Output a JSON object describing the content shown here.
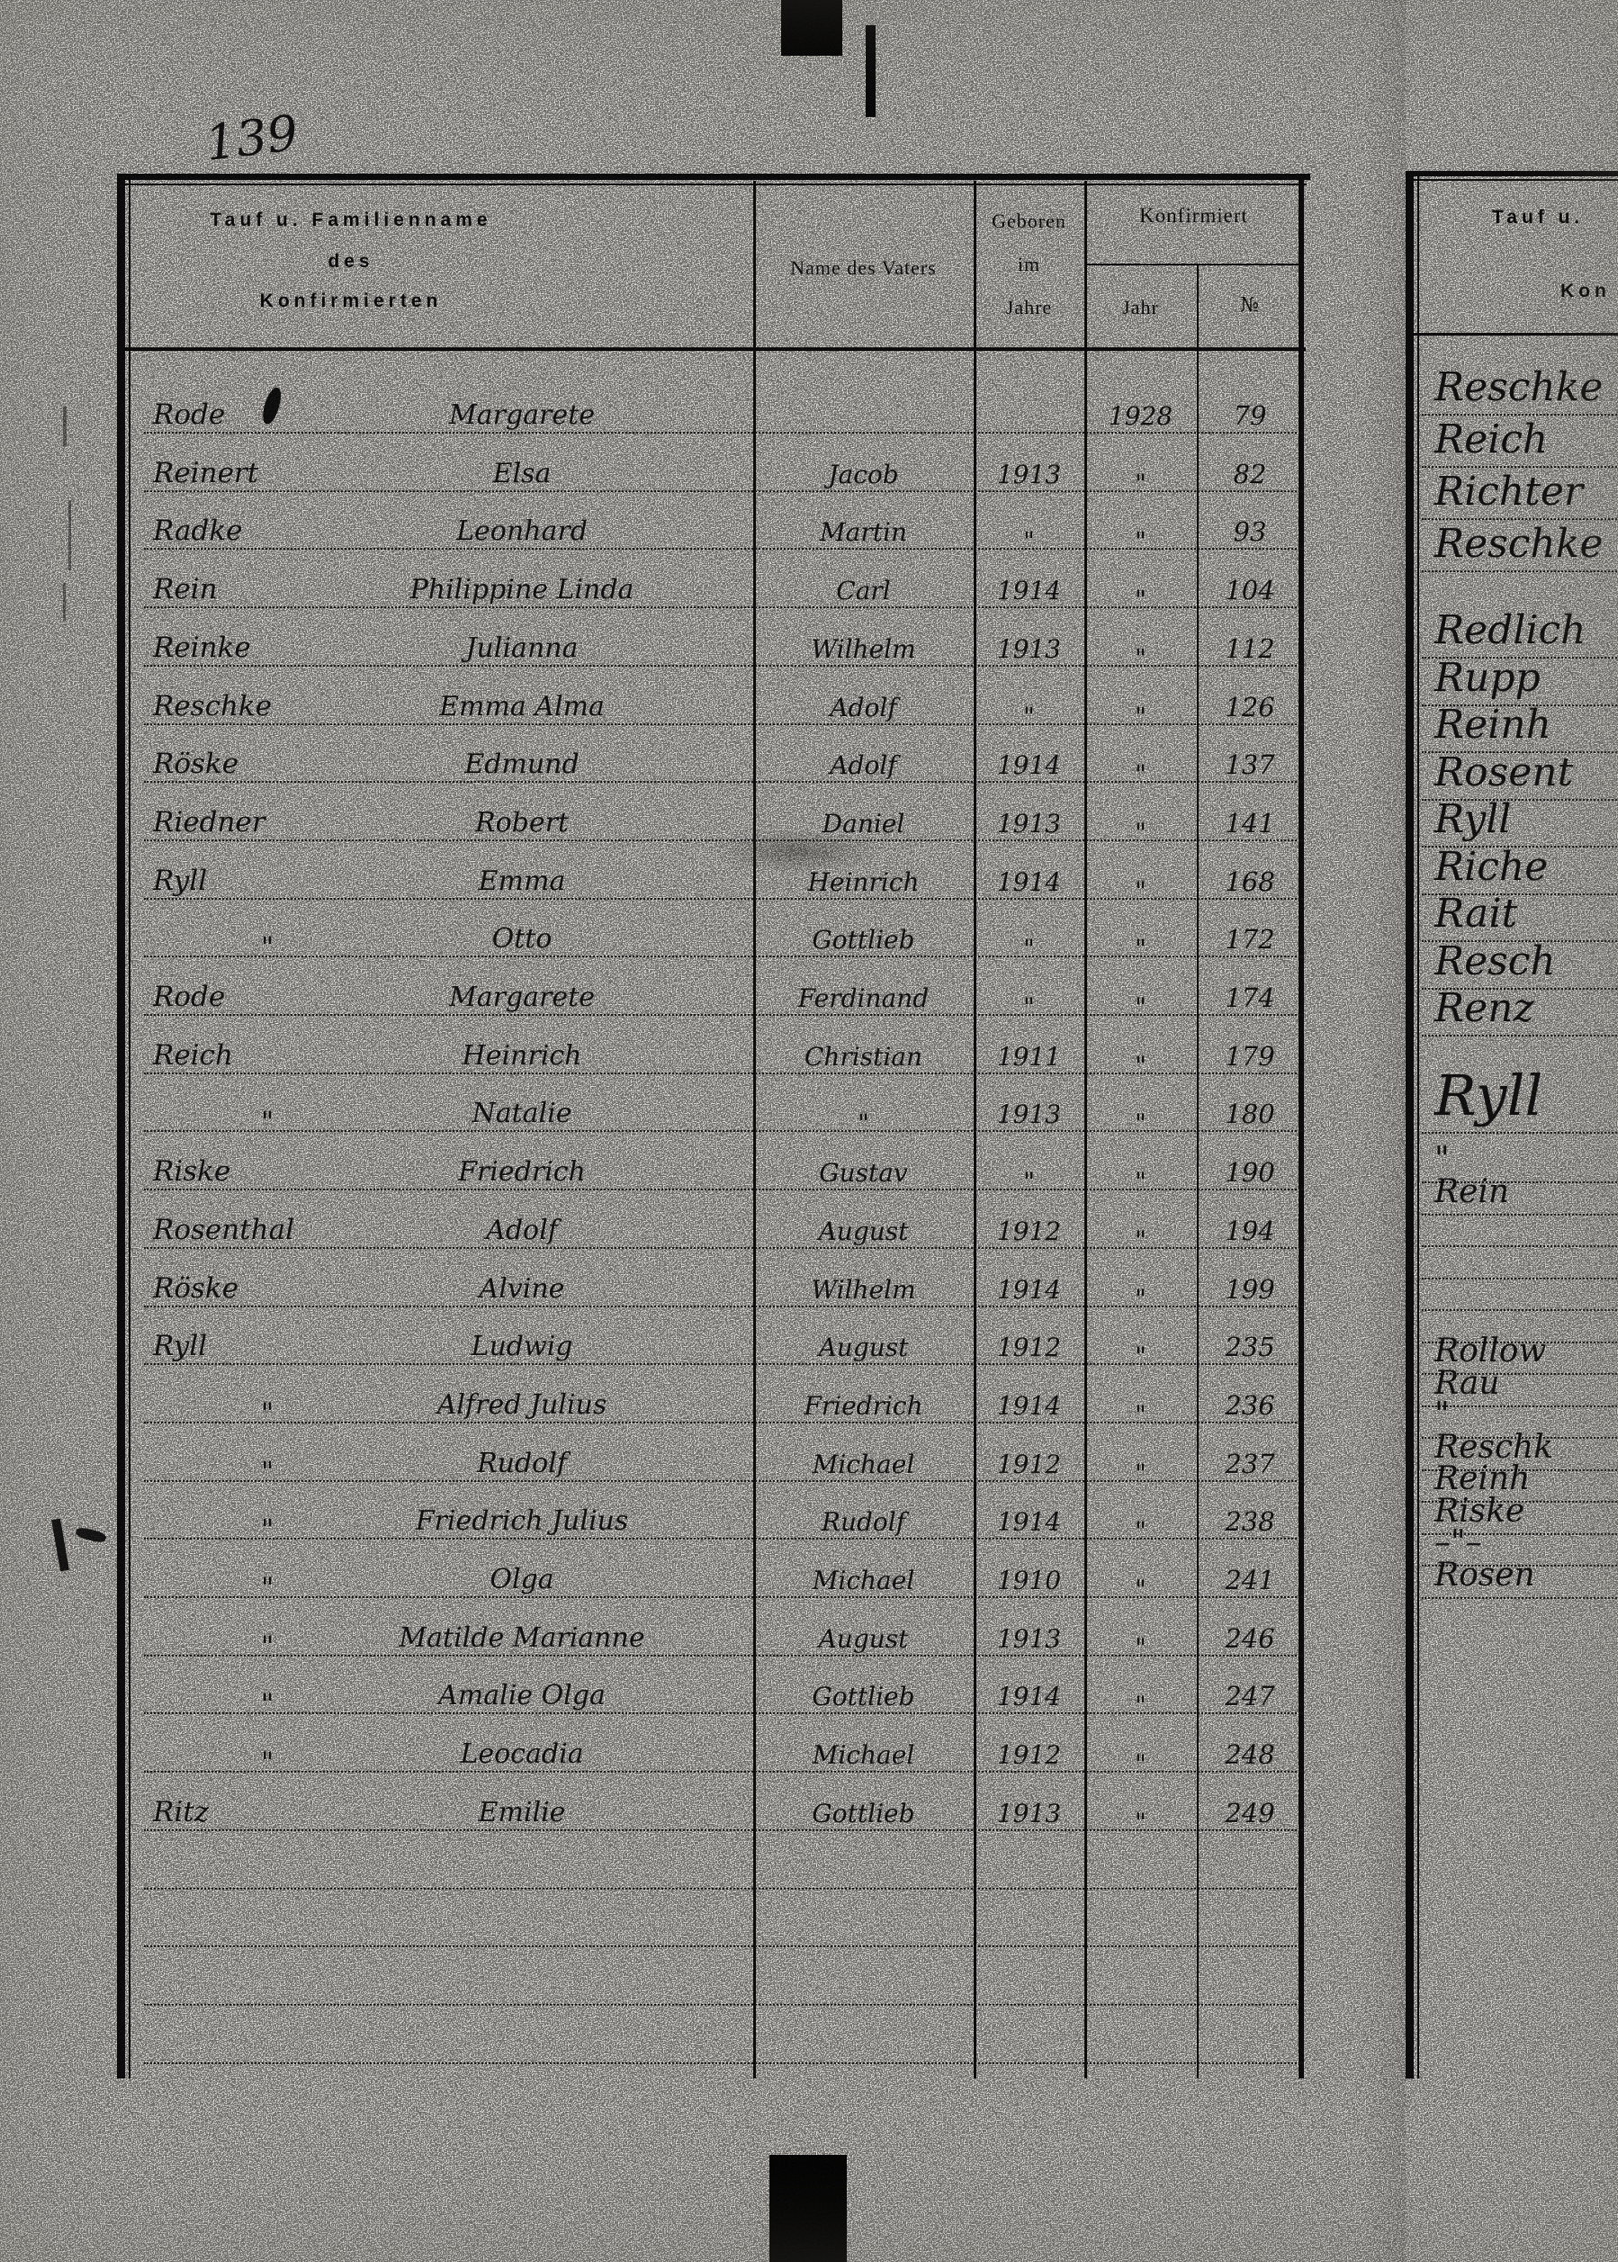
{
  "page_number": "139",
  "left_page": {
    "header": {
      "name_col_line1": "Tauf u. Familienname",
      "name_col_line2": "des",
      "name_col_line3": "Konfirmierten",
      "father_col": "Name des Vaters",
      "born_col_line1": "Geboren",
      "born_col_line2": "im",
      "born_col_line3": "Jahre",
      "confirmed_col": "Konfirmiert",
      "confirmed_year_col": "Jahr",
      "confirmed_no_col": "№"
    },
    "rows": [
      {
        "surname": "Rode",
        "given": "Margarete",
        "father": "",
        "born": "",
        "conf_year": "1928",
        "conf_no": "79"
      },
      {
        "surname": "Reinert",
        "given": "Elsa",
        "father": "Jacob",
        "born": "1913",
        "conf_year": "\"",
        "conf_no": "82"
      },
      {
        "surname": "Radke",
        "given": "Leonhard",
        "father": "Martin",
        "born": "\"",
        "conf_year": "\"",
        "conf_no": "93"
      },
      {
        "surname": "Rein",
        "given": "Philippine Linda",
        "father": "Carl",
        "born": "1914",
        "conf_year": "\"",
        "conf_no": "104"
      },
      {
        "surname": "Reinke",
        "given": "Julianna",
        "father": "Wilhelm",
        "born": "1913",
        "conf_year": "\"",
        "conf_no": "112"
      },
      {
        "surname": "Reschke",
        "given": "Emma Alma",
        "father": "Adolf",
        "born": "\"",
        "conf_year": "\"",
        "conf_no": "126"
      },
      {
        "surname": "Röske",
        "given": "Edmund",
        "father": "Adolf",
        "born": "1914",
        "conf_year": "\"",
        "conf_no": "137"
      },
      {
        "surname": "Riedner",
        "given": "Robert",
        "father": "Daniel",
        "born": "1913",
        "conf_year": "\"",
        "conf_no": "141"
      },
      {
        "surname": "Ryll",
        "given": "Emma",
        "father": "Heinrich",
        "born": "1914",
        "conf_year": "\"",
        "conf_no": "168"
      },
      {
        "surname": "\"",
        "given": "Otto",
        "father": "Gottlieb",
        "born": "\"",
        "conf_year": "\"",
        "conf_no": "172"
      },
      {
        "surname": "Rode",
        "given": "Margarete",
        "father": "Ferdinand",
        "born": "\"",
        "conf_year": "\"",
        "conf_no": "174"
      },
      {
        "surname": "Reich",
        "given": "Heinrich",
        "father": "Christian",
        "born": "1911",
        "conf_year": "\"",
        "conf_no": "179"
      },
      {
        "surname": "\"",
        "given": "Natalie",
        "father": "\"",
        "born": "1913",
        "conf_year": "\"",
        "conf_no": "180"
      },
      {
        "surname": "Riske",
        "given": "Friedrich",
        "father": "Gustav",
        "born": "\"",
        "conf_year": "\"",
        "conf_no": "190"
      },
      {
        "surname": "Rosenthal",
        "given": "Adolf",
        "father": "August",
        "born": "1912",
        "conf_year": "\"",
        "conf_no": "194"
      },
      {
        "surname": "Röske",
        "given": "Alvine",
        "father": "Wilhelm",
        "born": "1914",
        "conf_year": "\"",
        "conf_no": "199"
      },
      {
        "surname": "Ryll",
        "given": "Ludwig",
        "father": "August",
        "born": "1912",
        "conf_year": "\"",
        "conf_no": "235"
      },
      {
        "surname": "\"",
        "given": "Alfred Julius",
        "father": "Friedrich",
        "born": "1914",
        "conf_year": "\"",
        "conf_no": "236"
      },
      {
        "surname": "\"",
        "given": "Rudolf",
        "father": "Michael",
        "born": "1912",
        "conf_year": "\"",
        "conf_no": "237"
      },
      {
        "surname": "\"",
        "given": "Friedrich Julius",
        "father": "Rudolf",
        "born": "1914",
        "conf_year": "\"",
        "conf_no": "238"
      },
      {
        "surname": "\"",
        "given": "Olga",
        "father": "Michael",
        "born": "1910",
        "conf_year": "\"",
        "conf_no": "241"
      },
      {
        "surname": "\"",
        "given": "Matilde Marianne",
        "father": "August",
        "born": "1913",
        "conf_year": "\"",
        "conf_no": "246"
      },
      {
        "surname": "\"",
        "given": "Amalie Olga",
        "father": "Gottlieb",
        "born": "1914",
        "conf_year": "\"",
        "conf_no": "247"
      },
      {
        "surname": "\"",
        "given": "Leocadia",
        "father": "Michael",
        "born": "1912",
        "conf_year": "\"",
        "conf_no": "248"
      },
      {
        "surname": "Ritz",
        "given": "Emilie",
        "father": "Gottlieb",
        "born": "1913",
        "conf_year": "\"",
        "conf_no": "249"
      }
    ],
    "blank_ruled_rows": 4
  },
  "right_page": {
    "header": {
      "title_fragment": "Tauf u.",
      "subtitle_fragment": "Kon"
    },
    "entries": [
      {
        "text": "Reschke"
      },
      {
        "text": "Reich"
      },
      {
        "text": "Richter"
      },
      {
        "text": "Reschke"
      },
      {
        "text": "Redlich"
      },
      {
        "text": "Rupp"
      },
      {
        "text": "Reinh"
      },
      {
        "text": "Rosent"
      },
      {
        "text": "Ryll"
      },
      {
        "text": "Riche"
      },
      {
        "text": "Rait"
      },
      {
        "text": "Resch"
      },
      {
        "text": "Renz"
      },
      {
        "text": "Ryll",
        "size": "large"
      },
      {
        "text": "\""
      },
      {
        "text": "Rein"
      },
      {
        "text": ""
      },
      {
        "text": ""
      },
      {
        "text": ""
      },
      {
        "text": ""
      },
      {
        "text": "Rollow"
      },
      {
        "text": "Rau"
      },
      {
        "text": "\""
      },
      {
        "text": "Reschk"
      },
      {
        "text": "Reinh"
      },
      {
        "text": "Riske"
      },
      {
        "text": "–\"–"
      },
      {
        "text": "Rosen"
      }
    ]
  },
  "colors": {
    "paper": "#eae8e3",
    "ink_print": "#141414",
    "ink_hand": "#1b1b1b"
  }
}
